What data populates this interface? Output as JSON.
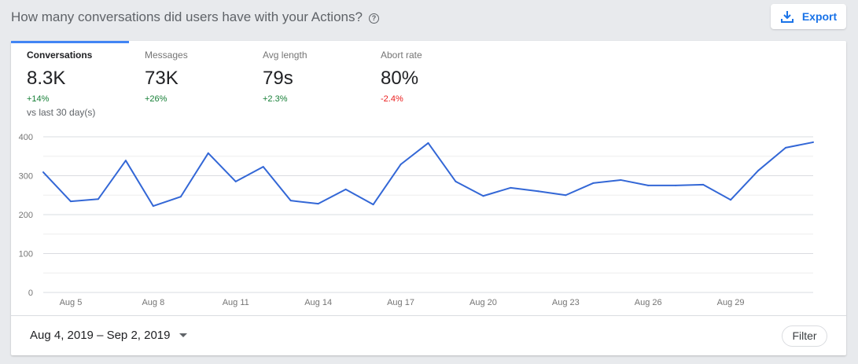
{
  "header": {
    "title": "How many conversations did users have with your Actions?",
    "export_label": "Export"
  },
  "tabs": [
    {
      "label": "Conversations",
      "value": "8.3K",
      "delta": "+14%",
      "delta_color": "#188038",
      "active": true
    },
    {
      "label": "Messages",
      "value": "73K",
      "delta": "+26%",
      "delta_color": "#188038"
    },
    {
      "label": "Avg length",
      "value": "79s",
      "delta": "+2.3%",
      "delta_color": "#188038"
    },
    {
      "label": "Abort rate",
      "value": "80%",
      "delta": "-2.4%",
      "delta_color": "#ea1c1c"
    }
  ],
  "comparison": "vs last 30 day(s)",
  "footer": {
    "date_range": "Aug 4, 2019 – Sep 2, 2019",
    "filter_label": "Filter"
  },
  "chart_data": {
    "type": "line",
    "x": [
      "Aug 4",
      "Aug 5",
      "Aug 6",
      "Aug 7",
      "Aug 8",
      "Aug 9",
      "Aug 10",
      "Aug 11",
      "Aug 12",
      "Aug 13",
      "Aug 14",
      "Aug 15",
      "Aug 16",
      "Aug 17",
      "Aug 18",
      "Aug 19",
      "Aug 20",
      "Aug 21",
      "Aug 22",
      "Aug 23",
      "Aug 24",
      "Aug 25",
      "Aug 26",
      "Aug 27",
      "Aug 28",
      "Aug 29",
      "Aug 30",
      "Aug 31",
      "Sep 1"
    ],
    "values": [
      309,
      234,
      240,
      339,
      222,
      246,
      358,
      285,
      323,
      236,
      228,
      265,
      226,
      329,
      384,
      285,
      248,
      269,
      260,
      250,
      281,
      289,
      275,
      275,
      277,
      238,
      313,
      372,
      386
    ],
    "x_tick_labels": [
      "Aug 5",
      "Aug 8",
      "Aug 11",
      "Aug 14",
      "Aug 17",
      "Aug 20",
      "Aug 23",
      "Aug 26",
      "Aug 29"
    ],
    "y_ticks": [
      0,
      100,
      200,
      300,
      400
    ],
    "ylim": [
      0,
      400
    ],
    "grid": true,
    "color": "#3367d6"
  }
}
